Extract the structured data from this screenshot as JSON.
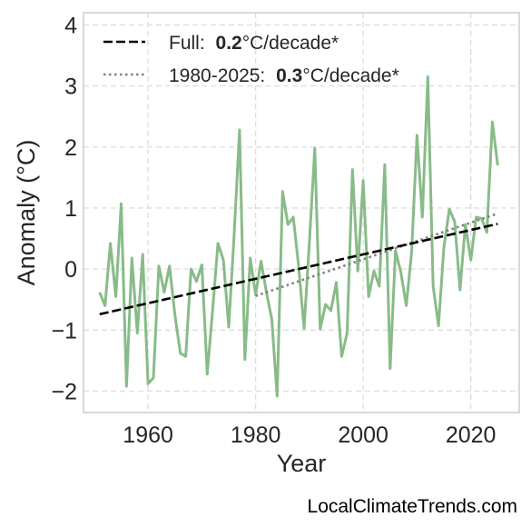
{
  "chart_data": {
    "type": "line",
    "xlabel": "Year",
    "ylabel": "Anomaly (°C)",
    "xlim": [
      1948,
      2029
    ],
    "ylim": [
      -2.35,
      4.2
    ],
    "xticks": [
      1960,
      1980,
      2000,
      2020
    ],
    "yticks": [
      -2,
      -1,
      0,
      1,
      2,
      3,
      4
    ],
    "ytick_labels": [
      "−2",
      "−1",
      "0",
      "1",
      "2",
      "3",
      "4"
    ],
    "grid": true,
    "legend_position": "top-left",
    "colors": {
      "anomaly": "#88bb88",
      "full_trend": "#000000",
      "recent_trend": "#808080",
      "grid": "#dddddd",
      "frame": "#cccccc"
    },
    "series": [
      {
        "key": "anomaly",
        "x": [
          1951,
          1952,
          1953,
          1954,
          1955,
          1956,
          1957,
          1958,
          1959,
          1960,
          1961,
          1962,
          1963,
          1964,
          1965,
          1966,
          1967,
          1968,
          1969,
          1970,
          1971,
          1972,
          1973,
          1974,
          1975,
          1976,
          1977,
          1978,
          1979,
          1980,
          1981,
          1982,
          1983,
          1984,
          1985,
          1986,
          1987,
          1988,
          1989,
          1990,
          1991,
          1992,
          1993,
          1994,
          1995,
          1996,
          1997,
          1998,
          1999,
          2000,
          2001,
          2002,
          2003,
          2004,
          2005,
          2006,
          2007,
          2008,
          2009,
          2010,
          2011,
          2012,
          2013,
          2014,
          2015,
          2016,
          2017,
          2018,
          2019,
          2020,
          2021,
          2022,
          2023,
          2024,
          2025
        ],
        "values": [
          -0.38,
          -0.6,
          0.42,
          -0.45,
          1.07,
          -1.92,
          0.18,
          -1.05,
          0.24,
          -1.88,
          -1.78,
          0.05,
          -0.38,
          0.05,
          -0.75,
          -1.38,
          -1.43,
          0.0,
          -0.2,
          0.07,
          -1.72,
          -0.68,
          0.42,
          0.15,
          -0.95,
          0.55,
          2.28,
          -1.48,
          0.18,
          -0.42,
          0.13,
          -0.38,
          -0.82,
          -2.08,
          1.27,
          0.73,
          0.85,
          0.05,
          -0.97,
          0.45,
          1.98,
          -0.98,
          -0.58,
          -0.68,
          -0.22,
          -1.43,
          -1.05,
          1.63,
          -0.03,
          1.45,
          -0.45,
          -0.03,
          -0.28,
          1.71,
          -1.63,
          0.3,
          -0.05,
          -0.6,
          0.28,
          2.19,
          0.85,
          3.15,
          -0.28,
          -0.93,
          0.35,
          0.98,
          0.78,
          -0.34,
          0.73,
          0.15,
          0.85,
          0.83,
          0.6,
          2.41,
          1.7
        ]
      },
      {
        "key": "full_trend",
        "name": "Full",
        "rate": "0.2",
        "unit": "°C/decade*",
        "x": [
          1951,
          2025
        ],
        "values": [
          -0.74,
          0.74
        ]
      },
      {
        "key": "recent_trend",
        "name": "1980-2025",
        "rate": "0.3",
        "unit": "°C/decade*",
        "x": [
          1980,
          2025
        ],
        "values": [
          -0.44,
          0.91
        ]
      }
    ]
  },
  "legend": {
    "full": {
      "name": "Full:",
      "rate": "0.2",
      "unit": "°C/decade*"
    },
    "recent": {
      "name": "1980-2025:",
      "rate": "0.3",
      "unit": "°C/decade*"
    }
  },
  "watermark": "LocalClimateTrends.com"
}
